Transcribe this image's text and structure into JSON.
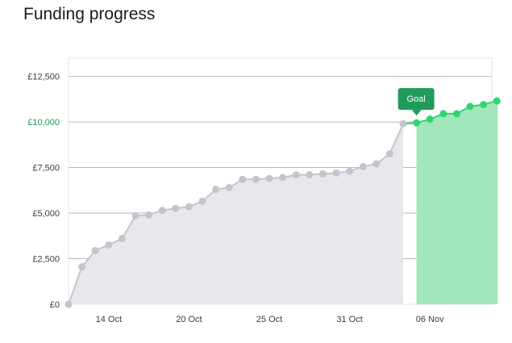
{
  "page": {
    "title": "Funding progress"
  },
  "colors": {
    "history_line": "#c5c4cc",
    "history_area": "#e8e8ec",
    "goal_line": "#2fd66e",
    "goal_area": "#a2e6bc",
    "goal_badge": "#1f9c5a",
    "goal_tick": "#1f9c5a",
    "grid": "#b8b8b8"
  },
  "chart_data": {
    "type": "area",
    "title": "Funding progress",
    "xlabel": "",
    "ylabel": "",
    "x_ticks": [
      "14 Oct",
      "20 Oct",
      "25 Oct",
      "31 Oct",
      "06 Nov"
    ],
    "y_ticks": [
      "£0",
      "£2,500",
      "£5,000",
      "£7,500",
      "£10,000",
      "£12,500"
    ],
    "y_tick_values": [
      0,
      2500,
      5000,
      7500,
      10000,
      12500
    ],
    "ylim": [
      0,
      13500
    ],
    "highlight_tick": "£10,000",
    "grid": true,
    "goal_value": 10000,
    "goal_label": "Goal",
    "series": [
      {
        "name": "",
        "phase": "pre-goal",
        "values": [
          0,
          2050,
          2950,
          3250,
          3600,
          4850,
          4900,
          5150,
          5250,
          5350,
          5650,
          6300,
          6400,
          6850,
          6850,
          6900,
          6950,
          7100,
          7100,
          7150,
          7200,
          7300,
          7550,
          7700,
          8250,
          9900
        ]
      },
      {
        "name": "",
        "phase": "post-goal",
        "values": [
          9950,
          10150,
          10450,
          10450,
          10850,
          10950,
          11150
        ]
      }
    ]
  }
}
